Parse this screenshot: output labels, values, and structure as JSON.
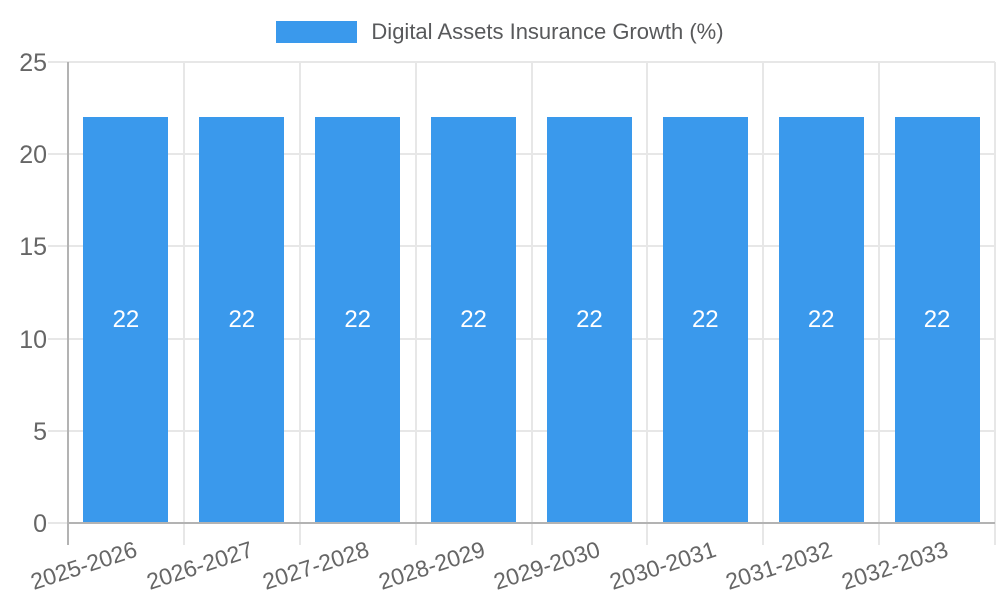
{
  "legend": {
    "items": [
      {
        "label": "Digital Assets Insurance Growth (%)",
        "color": "#3a99ec"
      }
    ]
  },
  "chart_data": {
    "type": "bar",
    "title": "",
    "categories": [
      "2025-2026",
      "2026-2027",
      "2027-2028",
      "2028-2029",
      "2029-2030",
      "2030-2031",
      "2031-2032",
      "2032-2033"
    ],
    "series": [
      {
        "name": "Digital Assets Insurance Growth (%)",
        "color": "#3a99ec",
        "values": [
          22,
          22,
          22,
          22,
          22,
          22,
          22,
          22
        ]
      }
    ],
    "value_labels": [
      "22",
      "22",
      "22",
      "22",
      "22",
      "22",
      "22",
      "22"
    ],
    "xlabel": "",
    "ylabel": "",
    "ylim": [
      0,
      25
    ],
    "yticks": [
      0,
      5,
      10,
      15,
      20,
      25
    ],
    "grid": true,
    "legend_position": "top",
    "x_tick_rotation_deg": -18
  },
  "colors": {
    "bar": "#3a99ec",
    "grid": "#e7e7e7",
    "axis": "#b3b3b3",
    "tick_label": "#666666",
    "legend_text": "#58595b",
    "bar_value_label": "#ffffff",
    "background": "#ffffff"
  }
}
